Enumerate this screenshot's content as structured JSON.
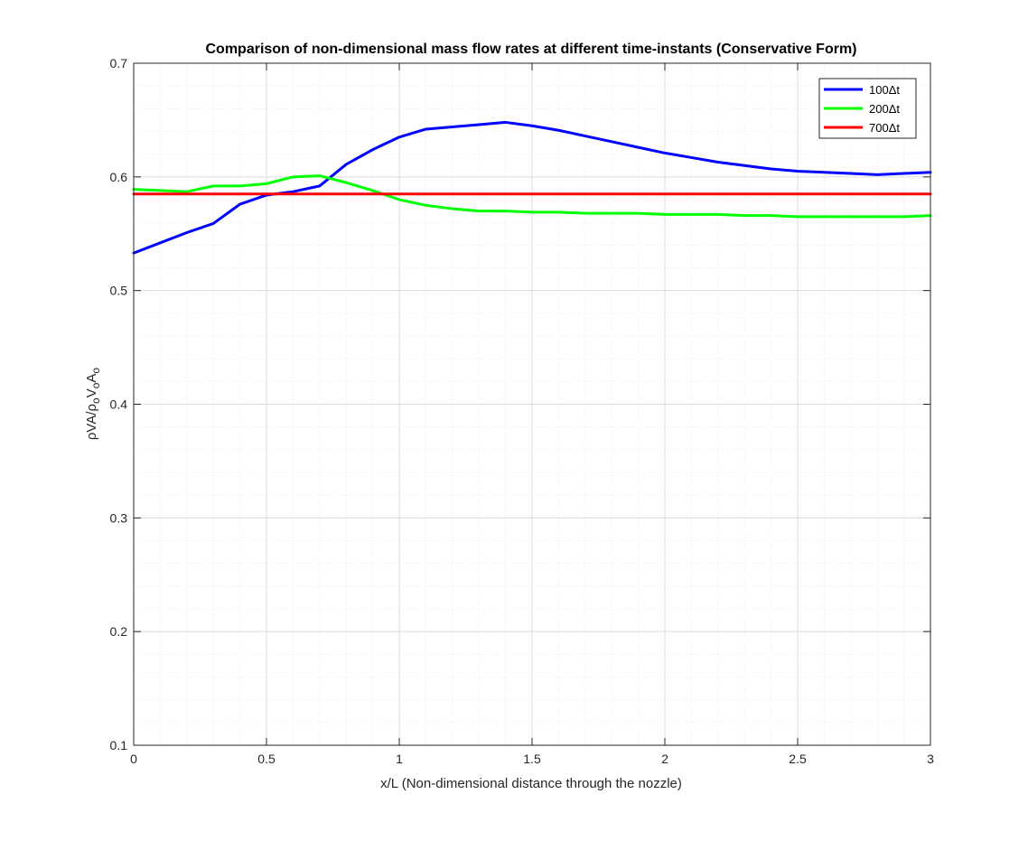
{
  "chart_data": {
    "type": "line",
    "title": "Comparison of non-dimensional mass flow rates at different time-instants (Conservative Form)",
    "xlabel": "x/L (Non-dimensional distance through the nozzle)",
    "ylabel": {
      "parts": [
        "ρVA/ρ",
        "o",
        "V",
        "o",
        "A",
        "o"
      ]
    },
    "xlim": [
      0,
      3
    ],
    "ylim": [
      0.1,
      0.7
    ],
    "xticks": [
      0,
      0.5,
      1,
      1.5,
      2,
      2.5,
      3
    ],
    "xtick_labels": [
      "0",
      "0.5",
      "1",
      "1.5",
      "2",
      "2.5",
      "3"
    ],
    "yticks": [
      0.1,
      0.2,
      0.3,
      0.4,
      0.5,
      0.6,
      0.7
    ],
    "ytick_labels": [
      "0.1",
      "0.2",
      "0.3",
      "0.4",
      "0.5",
      "0.6",
      "0.7"
    ],
    "grid": true,
    "minor_grid": true,
    "legend_position": "top-right",
    "x": [
      0,
      0.1,
      0.2,
      0.3,
      0.4,
      0.5,
      0.6,
      0.7,
      0.8,
      0.9,
      1.0,
      1.1,
      1.2,
      1.3,
      1.4,
      1.5,
      1.6,
      1.7,
      1.8,
      1.9,
      2.0,
      2.1,
      2.2,
      2.3,
      2.4,
      2.5,
      2.6,
      2.7,
      2.8,
      2.9,
      3.0
    ],
    "series": [
      {
        "name": "100Δt",
        "color": "#0000ff",
        "values": [
          0.533,
          0.542,
          0.551,
          0.559,
          0.576,
          0.584,
          0.587,
          0.592,
          0.611,
          0.624,
          0.635,
          0.642,
          0.644,
          0.646,
          0.648,
          0.645,
          0.641,
          0.636,
          0.631,
          0.626,
          0.621,
          0.617,
          0.613,
          0.61,
          0.607,
          0.605,
          0.604,
          0.603,
          0.602,
          0.603,
          0.604
        ]
      },
      {
        "name": "200Δt",
        "color": "#00ff00",
        "values": [
          0.589,
          0.588,
          0.587,
          0.592,
          0.592,
          0.594,
          0.6,
          0.601,
          0.595,
          0.588,
          0.58,
          0.575,
          0.572,
          0.57,
          0.57,
          0.569,
          0.569,
          0.568,
          0.568,
          0.568,
          0.567,
          0.567,
          0.567,
          0.566,
          0.566,
          0.565,
          0.565,
          0.565,
          0.565,
          0.565,
          0.566
        ]
      },
      {
        "name": "700Δt",
        "color": "#ff0000",
        "values": [
          0.585,
          0.585,
          0.585,
          0.585,
          0.585,
          0.585,
          0.585,
          0.585,
          0.585,
          0.585,
          0.585,
          0.585,
          0.585,
          0.585,
          0.585,
          0.585,
          0.585,
          0.585,
          0.585,
          0.585,
          0.585,
          0.585,
          0.585,
          0.585,
          0.585,
          0.585,
          0.585,
          0.585,
          0.585,
          0.585,
          0.585
        ]
      }
    ]
  }
}
